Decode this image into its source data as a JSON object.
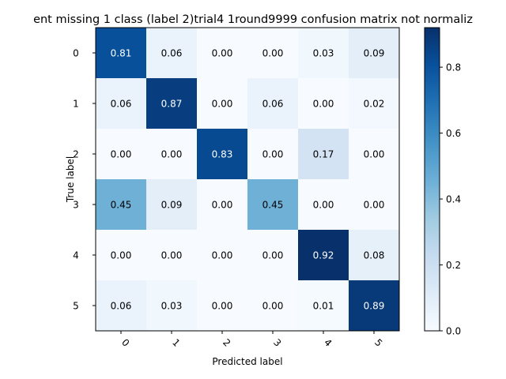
{
  "chart_data": {
    "type": "heatmap",
    "title": "ent missing 1 class (label 2)trial4 1round9999 confusion matrix not normaliz",
    "xlabel": "Predicted label",
    "ylabel": "True label",
    "x_categories": [
      "0",
      "1",
      "2",
      "3",
      "4",
      "5"
    ],
    "y_categories": [
      "0",
      "1",
      "2",
      "3",
      "4",
      "5"
    ],
    "values": [
      [
        0.81,
        0.06,
        0.0,
        0.0,
        0.03,
        0.09
      ],
      [
        0.06,
        0.87,
        0.0,
        0.06,
        0.0,
        0.02
      ],
      [
        0.0,
        0.0,
        0.83,
        0.0,
        0.17,
        0.0
      ],
      [
        0.45,
        0.09,
        0.0,
        0.45,
        0.0,
        0.0
      ],
      [
        0.0,
        0.0,
        0.0,
        0.0,
        0.92,
        0.08
      ],
      [
        0.06,
        0.03,
        0.0,
        0.0,
        0.01,
        0.89
      ]
    ],
    "colormap": "Blues",
    "colorbar": {
      "range": [
        0.0,
        0.92
      ],
      "ticks": [
        "0.0",
        "0.2",
        "0.4",
        "0.6",
        "0.8"
      ]
    },
    "x_tick_rotation": "45 degrees",
    "grid": false
  }
}
